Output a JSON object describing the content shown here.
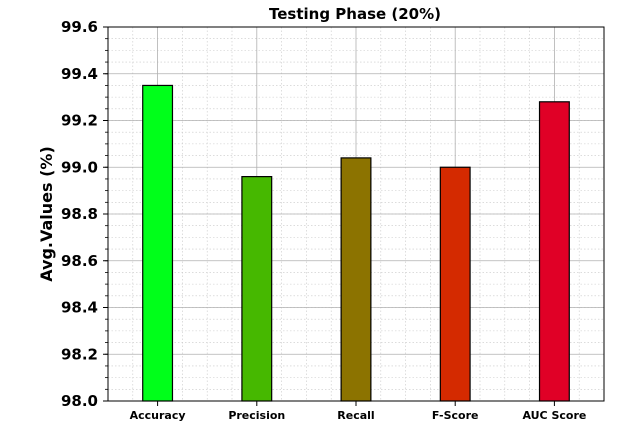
{
  "chart_data": {
    "type": "bar",
    "title": "Testing Phase (20%)",
    "xlabel": "",
    "ylabel": "Avg.Values (%)",
    "categories": [
      "Accuracy",
      "Precision",
      "Recall",
      "F-Score",
      "AUC Score"
    ],
    "values": [
      99.35,
      98.96,
      99.04,
      99.0,
      99.28
    ],
    "colors": [
      "#00ff1a",
      "#46b800",
      "#8c7300",
      "#d42a00",
      "#e00026"
    ],
    "ylim": [
      98.0,
      99.6
    ],
    "yticks": [
      "98.0",
      "98.2",
      "98.4",
      "98.6",
      "98.8",
      "99.0",
      "99.2",
      "99.4",
      "99.6"
    ],
    "grid": true,
    "minor_grid": true
  }
}
